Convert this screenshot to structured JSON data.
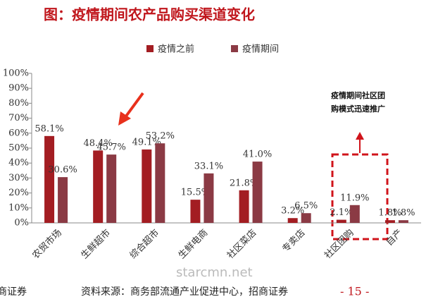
{
  "chart_data": {
    "type": "bar",
    "title": "图：疫情期间农产品购买渠道变化",
    "categories": [
      "农贸市场",
      "生鲜超市",
      "综合超市",
      "生鲜电商",
      "社区菜店",
      "专卖店",
      "社区团购",
      "自产"
    ],
    "series": [
      {
        "name": "疫情之前",
        "color": "#a31d22",
        "values": [
          58.1,
          48.4,
          49.1,
          15.5,
          21.8,
          3.2,
          2.1,
          1.8
        ],
        "value_labels": [
          "58.1%",
          "48.4%",
          "49.1%",
          "15.5%",
          "21.8%",
          "3.2%",
          "2.1%",
          "1.8%"
        ]
      },
      {
        "name": "疫情期间",
        "color": "#8b3a44",
        "values": [
          30.6,
          45.7,
          53.2,
          33.1,
          41.0,
          6.5,
          11.9,
          1.8
        ],
        "value_labels": [
          "30.6%",
          "45.7%",
          "53.2%",
          "33.1%",
          "41.0%",
          "6.5%",
          "11.9%",
          "1.8%"
        ]
      }
    ],
    "ylim": [
      0,
      100
    ],
    "yticks": [
      {
        "value": 0,
        "label": "0%"
      },
      {
        "value": 10,
        "label": "10%"
      },
      {
        "value": 20,
        "label": "20%"
      },
      {
        "value": 30,
        "label": "30%"
      },
      {
        "value": 40,
        "label": "40%"
      },
      {
        "value": 50,
        "label": "50%"
      },
      {
        "value": 60,
        "label": "60%"
      },
      {
        "value": 70,
        "label": "70%"
      },
      {
        "value": 80,
        "label": "80%"
      },
      {
        "value": 90,
        "label": "90%"
      },
      {
        "value": 100,
        "label": "100%"
      }
    ],
    "grid": false,
    "annotation": [
      "疫情期间社区团",
      "购模式迅速推广"
    ],
    "watermark": "starcmn.net",
    "footer_left": "商证券",
    "source": "资料来源：商务部流通产业促进中心，招商证券",
    "page_number": "- 15 -"
  }
}
